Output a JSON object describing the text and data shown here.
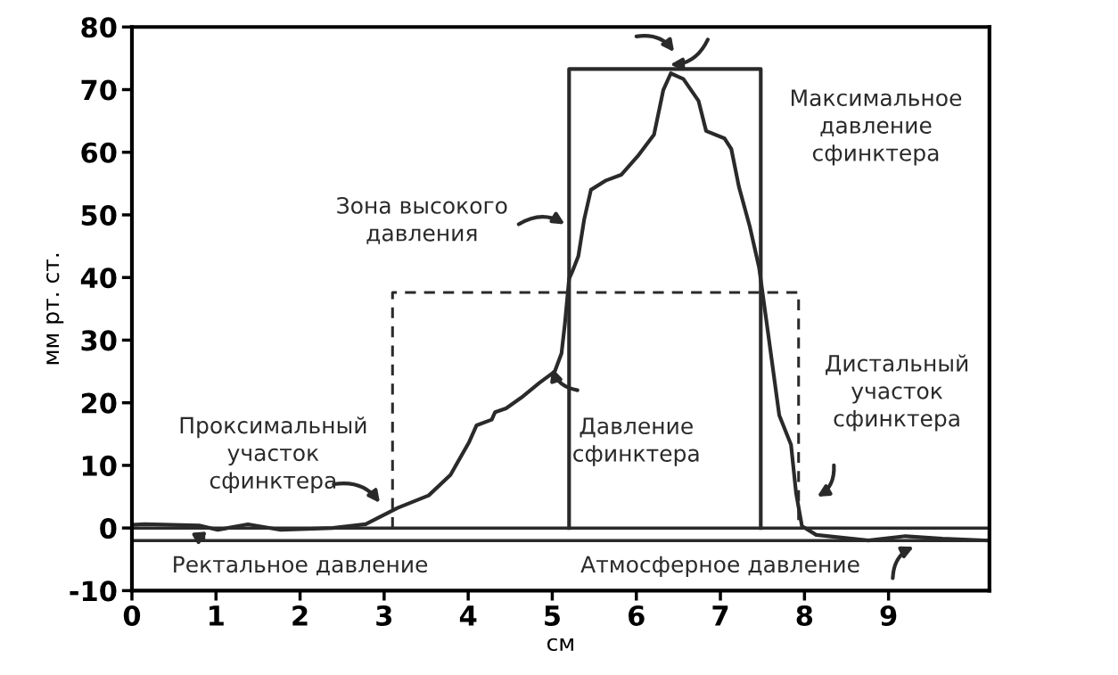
{
  "chart_data": {
    "type": "line",
    "xlabel": "см",
    "ylabel": "мм рт. ст.",
    "xlim": [
      0,
      10.2
    ],
    "ylim": [
      -10,
      80
    ],
    "xticks": [
      0,
      1,
      2,
      3,
      4,
      5,
      6,
      7,
      8,
      9
    ],
    "yticks": [
      -10,
      0,
      10,
      20,
      30,
      40,
      50,
      60,
      70,
      80
    ],
    "grid": false,
    "legend": false,
    "marker": "none",
    "series": [
      {
        "color": "#2a2a2a",
        "line_style": "solid",
        "x": [
          0.0,
          0.15,
          0.8,
          1.02,
          1.38,
          1.77,
          2.39,
          2.78,
          3.16,
          3.53,
          3.79,
          4.01,
          4.1,
          4.28,
          4.32,
          4.45,
          4.63,
          4.85,
          5.03,
          5.11,
          5.15,
          5.2,
          5.24,
          5.31,
          5.38,
          5.46,
          5.64,
          5.82,
          6.03,
          6.21,
          6.32,
          6.41,
          6.56,
          6.74,
          6.83,
          7.05,
          7.13,
          7.22,
          7.35,
          7.46,
          7.55,
          7.7,
          7.84,
          7.9,
          7.97,
          8.14,
          8.76,
          9.2,
          9.64,
          10.19
        ],
        "values": [
          0.5,
          0.6,
          0.4,
          -0.3,
          0.6,
          -0.3,
          0,
          0.6,
          3.2,
          5.2,
          8.5,
          13.7,
          16.4,
          17.3,
          18.5,
          19.1,
          20.8,
          23.2,
          25.0,
          27.9,
          32.6,
          39.8,
          41.0,
          43.4,
          49.3,
          54.0,
          55.5,
          56.4,
          59.6,
          62.8,
          69.9,
          72.6,
          71.7,
          68.2,
          63.4,
          62.2,
          60.5,
          54.5,
          48.1,
          41.6,
          32.8,
          18.0,
          13.3,
          5.6,
          0.3,
          -1.1,
          -2.0,
          -1.3,
          -1.7,
          -2.0
        ]
      },
      {
        "color": "#2a2a2a",
        "line_style": "solid",
        "x": [
          5.2,
          5.2,
          7.48,
          7.48
        ],
        "values": [
          0,
          73.3,
          73.3,
          0
        ]
      },
      {
        "color": "#2a2a2a",
        "line_style": "dashed",
        "x": [
          3.1,
          3.1,
          7.93,
          7.93
        ],
        "values": [
          0,
          37.6,
          37.6,
          0
        ]
      }
    ],
    "ref_lines": [
      {
        "axis": "y",
        "value": 0,
        "color": "#2a2a2a",
        "line_style": "solid"
      },
      {
        "axis": "y",
        "value": -2,
        "color": "#2a2a2a",
        "line_style": "solid"
      }
    ],
    "annotations": [
      "Зона высокого\nдавления",
      "Максимальное\nдавление\nсфинктера",
      "Проксимальный\nучасток\nсфинктера",
      "Давление\nсфинктера",
      "Дистальный\nучасток\nсфинктера",
      "Ректальное давление",
      "Атмосферное давление"
    ]
  }
}
